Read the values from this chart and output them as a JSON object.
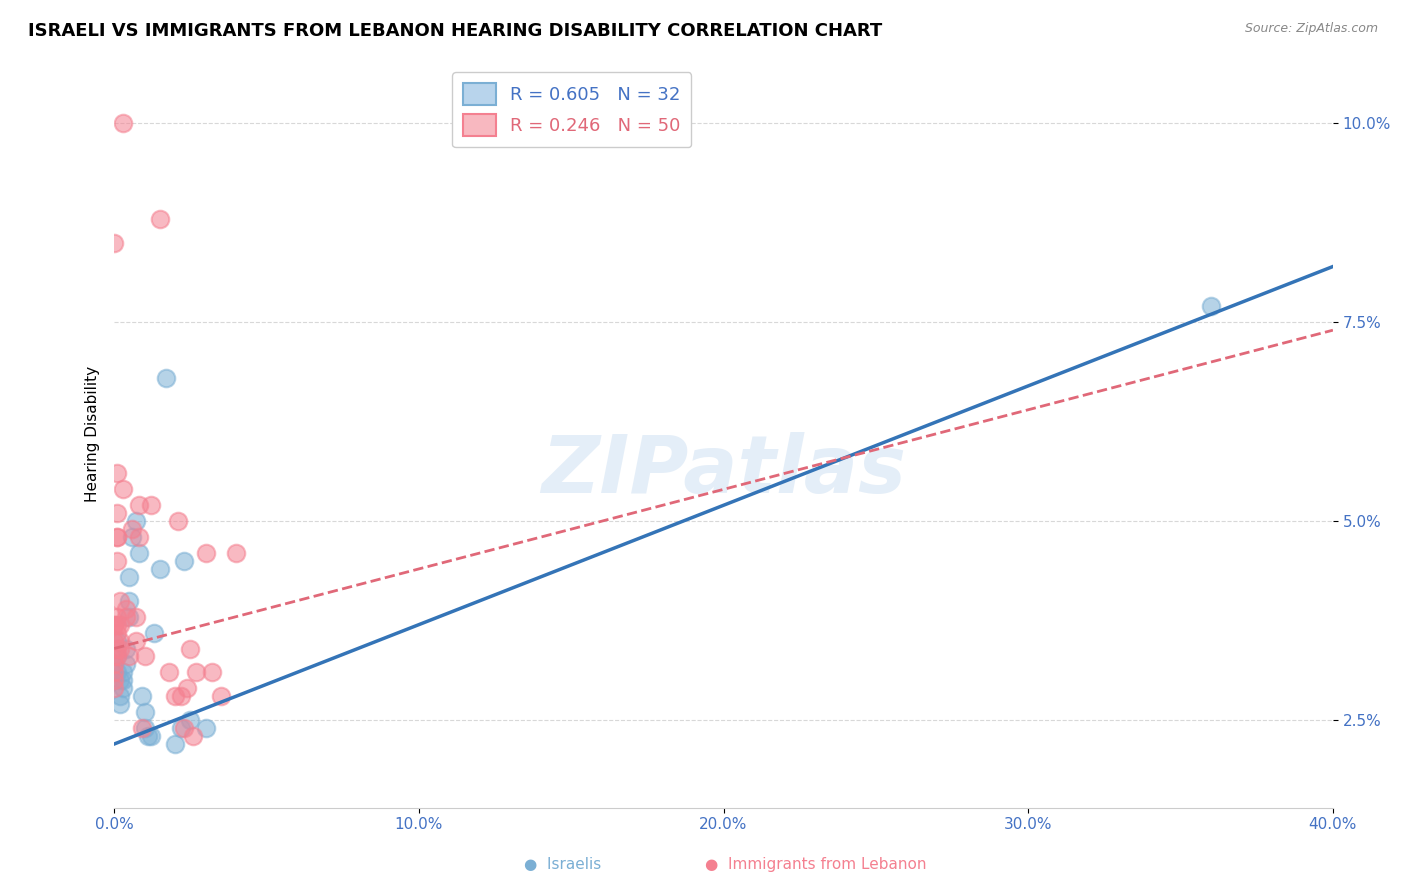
{
  "title": "ISRAELI VS IMMIGRANTS FROM LEBANON HEARING DISABILITY CORRELATION CHART",
  "source": "Source: ZipAtlas.com",
  "ylabel": "Hearing Disability",
  "xlim": [
    0.0,
    0.4
  ],
  "ylim": [
    0.014,
    0.108
  ],
  "watermark": "ZIPatlas",
  "israelis_scatter": [
    [
      0.0,
      0.032
    ],
    [
      0.001,
      0.035
    ],
    [
      0.001,
      0.033
    ],
    [
      0.001,
      0.031
    ],
    [
      0.002,
      0.03
    ],
    [
      0.002,
      0.028
    ],
    [
      0.002,
      0.027
    ],
    [
      0.003,
      0.029
    ],
    [
      0.003,
      0.031
    ],
    [
      0.003,
      0.03
    ],
    [
      0.004,
      0.034
    ],
    [
      0.004,
      0.032
    ],
    [
      0.005,
      0.038
    ],
    [
      0.005,
      0.04
    ],
    [
      0.005,
      0.043
    ],
    [
      0.006,
      0.048
    ],
    [
      0.007,
      0.05
    ],
    [
      0.008,
      0.046
    ],
    [
      0.009,
      0.028
    ],
    [
      0.01,
      0.026
    ],
    [
      0.01,
      0.024
    ],
    [
      0.011,
      0.023
    ],
    [
      0.012,
      0.023
    ],
    [
      0.013,
      0.036
    ],
    [
      0.015,
      0.044
    ],
    [
      0.017,
      0.068
    ],
    [
      0.02,
      0.022
    ],
    [
      0.022,
      0.024
    ],
    [
      0.023,
      0.045
    ],
    [
      0.025,
      0.025
    ],
    [
      0.03,
      0.024
    ],
    [
      0.36,
      0.077
    ]
  ],
  "lebanon_scatter": [
    [
      0.0,
      0.085
    ],
    [
      0.0,
      0.037
    ],
    [
      0.0,
      0.037
    ],
    [
      0.0,
      0.035
    ],
    [
      0.0,
      0.033
    ],
    [
      0.0,
      0.032
    ],
    [
      0.0,
      0.031
    ],
    [
      0.0,
      0.03
    ],
    [
      0.0,
      0.029
    ],
    [
      0.001,
      0.056
    ],
    [
      0.001,
      0.051
    ],
    [
      0.001,
      0.048
    ],
    [
      0.001,
      0.048
    ],
    [
      0.001,
      0.045
    ],
    [
      0.001,
      0.038
    ],
    [
      0.001,
      0.037
    ],
    [
      0.001,
      0.036
    ],
    [
      0.001,
      0.034
    ],
    [
      0.001,
      0.033
    ],
    [
      0.002,
      0.034
    ],
    [
      0.002,
      0.04
    ],
    [
      0.002,
      0.037
    ],
    [
      0.002,
      0.035
    ],
    [
      0.003,
      0.1
    ],
    [
      0.003,
      0.054
    ],
    [
      0.004,
      0.038
    ],
    [
      0.004,
      0.039
    ],
    [
      0.005,
      0.033
    ],
    [
      0.006,
      0.049
    ],
    [
      0.007,
      0.035
    ],
    [
      0.007,
      0.038
    ],
    [
      0.008,
      0.048
    ],
    [
      0.008,
      0.052
    ],
    [
      0.009,
      0.024
    ],
    [
      0.01,
      0.033
    ],
    [
      0.012,
      0.052
    ],
    [
      0.015,
      0.088
    ],
    [
      0.018,
      0.031
    ],
    [
      0.02,
      0.028
    ],
    [
      0.021,
      0.05
    ],
    [
      0.022,
      0.028
    ],
    [
      0.023,
      0.024
    ],
    [
      0.024,
      0.029
    ],
    [
      0.025,
      0.034
    ],
    [
      0.026,
      0.023
    ],
    [
      0.027,
      0.031
    ],
    [
      0.03,
      0.046
    ],
    [
      0.032,
      0.031
    ],
    [
      0.035,
      0.028
    ],
    [
      0.04,
      0.046
    ]
  ],
  "israelis_line_x": [
    0.0,
    0.4
  ],
  "israelis_line_y": [
    0.022,
    0.082
  ],
  "lebanon_line_x": [
    0.0,
    0.4
  ],
  "lebanon_line_y": [
    0.034,
    0.074
  ],
  "scatter_color_israelis": "#7bafd4",
  "scatter_color_lebanon": "#f48090",
  "line_color_israelis": "#3474b7",
  "line_color_lebanon": "#e06878",
  "background_color": "#ffffff",
  "grid_color": "#d8d8d8",
  "tick_color": "#4472c4",
  "title_fontsize": 13,
  "axis_label_fontsize": 11,
  "tick_fontsize": 11,
  "legend1_label": "R = 0.605   N = 32",
  "legend2_label": "R = 0.246   N = 50",
  "bottom_label1": "Israelis",
  "bottom_label2": "Immigrants from Lebanon"
}
